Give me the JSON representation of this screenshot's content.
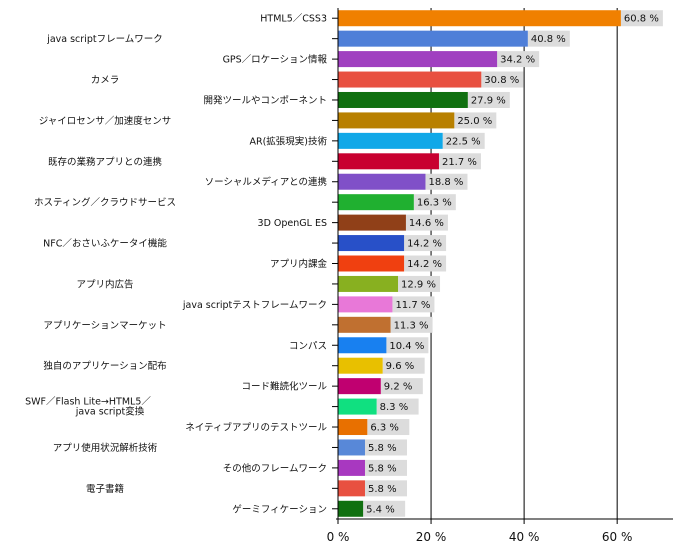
{
  "chart_data": {
    "type": "bar",
    "orientation": "horizontal",
    "categories": [
      "HTML5／CSS3",
      "java scriptフレームワーク",
      "GPS／ロケーション情報",
      "カメラ",
      "開発ツールやコンポーネント",
      "ジャイロセンサ／加速度センサ",
      "AR(拡張現実)技術",
      "既存の業務アプリとの連携",
      "ソーシャルメディアとの連携",
      "ホスティング／クラウドサービス",
      "3D OpenGL ES",
      "NFC／おさいふケータイ機能",
      "アプリ内課金",
      "アプリ内広告",
      "java scriptテストフレームワーク",
      "アプリケーションマーケット",
      "コンパス",
      "独自のアプリケーション配布",
      "コード難読化ツール",
      "SWF／Flash Lite→HTML5／java script変換",
      "ネイティブアプリのテストツール",
      "アプリ使用状況解析技術",
      "その他のフレームワーク",
      "電子書籍",
      "ゲーミフィケーション"
    ],
    "values": [
      60.8,
      40.8,
      34.2,
      30.8,
      27.9,
      25.0,
      22.5,
      21.7,
      18.8,
      16.3,
      14.6,
      14.2,
      14.2,
      12.9,
      11.7,
      11.3,
      10.4,
      9.6,
      9.2,
      8.3,
      6.3,
      5.8,
      5.8,
      5.8,
      5.4
    ],
    "value_labels": [
      "60.8 %",
      "40.8 %",
      "34.2 %",
      "30.8 %",
      "27.9 %",
      "25.0 %",
      "22.5 %",
      "21.7 %",
      "18.8 %",
      "16.3 %",
      "14.6 %",
      "14.2 %",
      "14.2 %",
      "12.9 %",
      "11.7 %",
      "11.3 %",
      "10.4 %",
      "9.6 %",
      "9.2 %",
      "8.3 %",
      "6.3 %",
      "5.8 %",
      "5.8 %",
      "5.8 %",
      "5.4 %"
    ],
    "colors": [
      "#f08000",
      "#4f7fd8",
      "#a040c0",
      "#e85040",
      "#107010",
      "#b88000",
      "#10a8e8",
      "#c80030",
      "#8050c8",
      "#20b030",
      "#904018",
      "#2850c8",
      "#f04010",
      "#88b020",
      "#e878d8",
      "#c07030",
      "#1880f0",
      "#e8c000",
      "#c00070",
      "#10e080",
      "#e87000",
      "#5888d8",
      "#a838c0",
      "#e85040",
      "#107010"
    ],
    "xlim": [
      0,
      72
    ],
    "x_ticks": [
      0,
      20,
      40,
      60
    ],
    "x_tick_labels": [
      "0 %",
      "20 %",
      "40 %",
      "60 %"
    ],
    "grid": true,
    "title": "",
    "xlabel": "",
    "ylabel": ""
  }
}
